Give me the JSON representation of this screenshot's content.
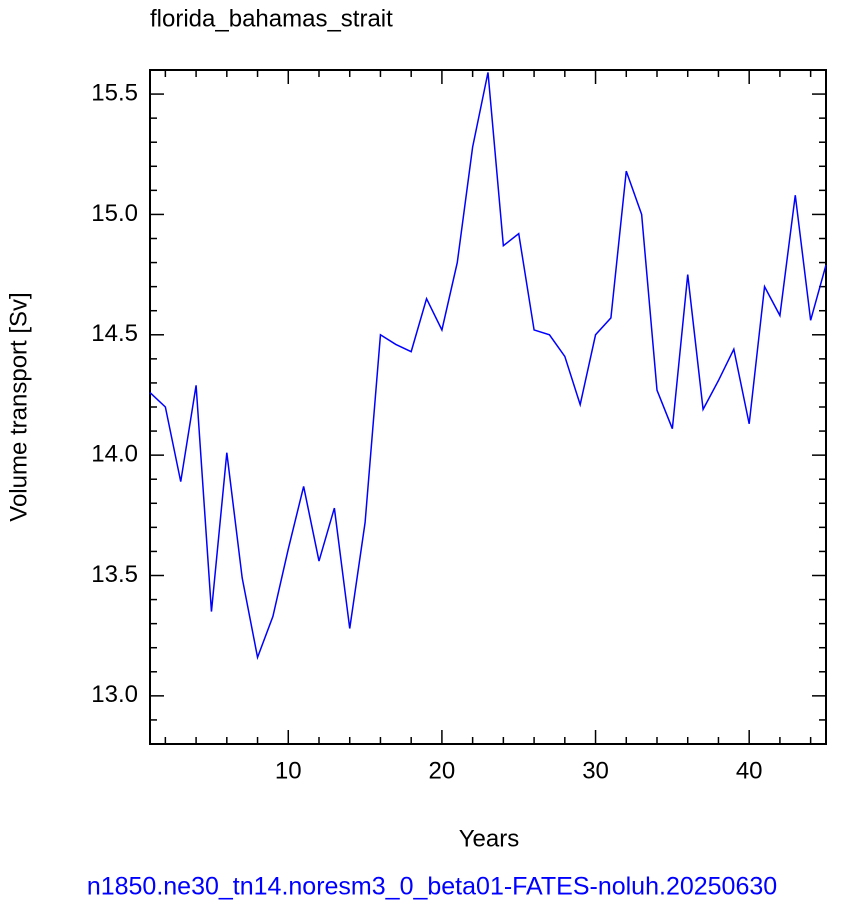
{
  "chart_data": {
    "type": "line",
    "title": "florida_bahamas_strait",
    "x_label": "Years",
    "y_label": "Volume transport [Sv]",
    "footnote": "n1850.ne30_tn14.noresm3_0_beta01-FATES-noluh.20250630",
    "x": [
      1,
      2,
      3,
      4,
      5,
      6,
      7,
      8,
      9,
      10,
      11,
      12,
      13,
      14,
      15,
      16,
      17,
      18,
      19,
      20,
      21,
      22,
      23,
      24,
      25,
      26,
      27,
      28,
      29,
      30,
      31,
      32,
      33,
      34,
      35,
      36,
      37,
      38,
      39,
      40,
      41,
      42,
      43,
      44,
      45
    ],
    "series": [
      {
        "color": "#0000ff",
        "values": [
          14.26,
          14.2,
          13.89,
          14.29,
          13.35,
          14.01,
          13.49,
          13.16,
          13.33,
          13.61,
          13.87,
          13.56,
          13.78,
          13.28,
          13.72,
          14.5,
          14.46,
          14.43,
          14.65,
          14.52,
          14.8,
          15.28,
          15.59,
          14.87,
          14.92,
          14.52,
          14.5,
          14.41,
          14.21,
          14.5,
          14.57,
          15.18,
          15.0,
          14.27,
          14.11,
          14.75,
          14.19,
          14.31,
          14.44,
          14.13,
          14.7,
          14.58,
          15.08,
          14.56,
          14.79
        ]
      }
    ],
    "xlim": [
      1,
      45
    ],
    "ylim": [
      12.8,
      15.6
    ],
    "xticks": [
      10,
      20,
      30,
      40
    ],
    "yticks": [
      {
        "value": 13.0,
        "label": "13.0"
      },
      {
        "value": 13.5,
        "label": "13.5"
      },
      {
        "value": 14.0,
        "label": "14.0"
      },
      {
        "value": 14.5,
        "label": "14.5"
      },
      {
        "value": 15.0,
        "label": "15.0"
      },
      {
        "value": 15.5,
        "label": "15.5"
      }
    ],
    "grid": false
  }
}
